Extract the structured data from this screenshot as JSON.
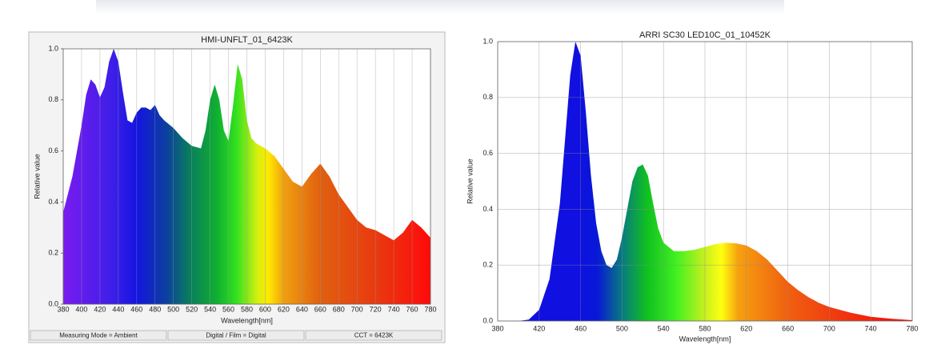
{
  "chart_data": [
    {
      "type": "area",
      "title": "HMI-UNFLT_01_6423K",
      "x_label": "Wavelength[nm]",
      "y_label": "Relative value",
      "x": [
        380,
        390,
        400,
        405,
        410,
        415,
        420,
        425,
        430,
        435,
        440,
        445,
        450,
        455,
        460,
        465,
        470,
        475,
        480,
        485,
        490,
        500,
        510,
        520,
        530,
        535,
        540,
        545,
        550,
        555,
        560,
        565,
        570,
        575,
        580,
        585,
        590,
        600,
        610,
        620,
        630,
        640,
        650,
        660,
        670,
        680,
        690,
        700,
        710,
        720,
        730,
        740,
        750,
        760,
        770,
        780
      ],
      "values": [
        0.36,
        0.5,
        0.7,
        0.82,
        0.88,
        0.86,
        0.81,
        0.85,
        0.95,
        1.0,
        0.95,
        0.83,
        0.72,
        0.71,
        0.75,
        0.77,
        0.77,
        0.76,
        0.78,
        0.74,
        0.72,
        0.69,
        0.65,
        0.62,
        0.61,
        0.68,
        0.8,
        0.86,
        0.8,
        0.68,
        0.64,
        0.78,
        0.94,
        0.88,
        0.72,
        0.65,
        0.63,
        0.61,
        0.58,
        0.53,
        0.48,
        0.46,
        0.51,
        0.55,
        0.5,
        0.43,
        0.38,
        0.33,
        0.3,
        0.29,
        0.27,
        0.25,
        0.28,
        0.33,
        0.3,
        0.26
      ],
      "xlim": [
        380,
        780
      ],
      "ylim": [
        0,
        1
      ],
      "xticks": [
        380,
        400,
        420,
        440,
        460,
        480,
        500,
        520,
        540,
        560,
        580,
        600,
        620,
        640,
        660,
        680,
        700,
        720,
        740,
        760,
        780
      ],
      "yticks": [
        {
          "value": 0,
          "label": "0.0"
        },
        0.2,
        0.4,
        0.6,
        0.8,
        {
          "value": 1,
          "label": "1.0"
        }
      ],
      "grid": "x",
      "status_bar": [
        "Measuring Mode = Ambient",
        "Digital / Film = Digital",
        "CCT = 6423K"
      ]
    },
    {
      "type": "area",
      "title": "ARRI SC30 LED10C_01_10452K",
      "x_label": "Wavelength[nm]",
      "y_label": "Relative value",
      "x": [
        380,
        390,
        400,
        410,
        420,
        430,
        440,
        445,
        450,
        455,
        460,
        465,
        470,
        475,
        480,
        485,
        490,
        495,
        500,
        505,
        510,
        515,
        520,
        525,
        530,
        535,
        540,
        550,
        560,
        570,
        580,
        590,
        600,
        610,
        620,
        630,
        640,
        650,
        660,
        670,
        680,
        690,
        700,
        720,
        740,
        760,
        780
      ],
      "values": [
        0,
        0,
        0,
        0.005,
        0.04,
        0.15,
        0.42,
        0.65,
        0.88,
        1.0,
        0.95,
        0.75,
        0.52,
        0.35,
        0.25,
        0.2,
        0.19,
        0.22,
        0.3,
        0.4,
        0.5,
        0.55,
        0.56,
        0.52,
        0.42,
        0.33,
        0.28,
        0.25,
        0.25,
        0.255,
        0.265,
        0.275,
        0.28,
        0.278,
        0.27,
        0.25,
        0.22,
        0.18,
        0.14,
        0.11,
        0.085,
        0.065,
        0.05,
        0.03,
        0.015,
        0.008,
        0.003
      ],
      "xlim": [
        380,
        780
      ],
      "ylim": [
        0,
        1
      ],
      "xticks": [
        380,
        420,
        460,
        500,
        540,
        580,
        620,
        660,
        700,
        740,
        780
      ],
      "yticks": [
        {
          "value": 0,
          "label": "0.0"
        },
        0.2,
        0.4,
        0.6,
        0.8,
        {
          "value": 1,
          "label": "1.0"
        }
      ],
      "grid": "both"
    }
  ]
}
